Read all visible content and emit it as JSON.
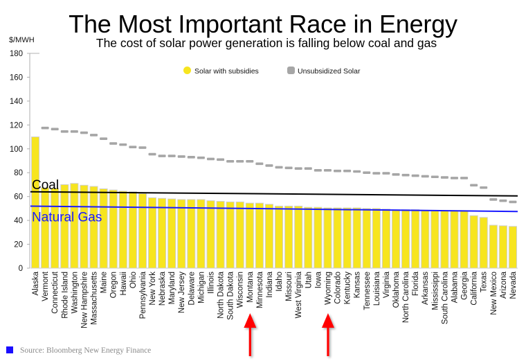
{
  "header": {
    "title": "The Most Important Race in Energy",
    "subtitle": "The cost of solar power generation is falling below coal and gas"
  },
  "source": {
    "label": "Source: Bloomberg New Energy Finance",
    "swatch_color": "#1a0dff"
  },
  "annotations": {
    "arrows": [
      {
        "target": "Montana",
        "color": "#ff0000"
      },
      {
        "target": "Wyoming",
        "color": "#ff0000"
      }
    ]
  },
  "chart_data": {
    "type": "bar",
    "title": "The Most Important Race in Energy",
    "subtitle": "The cost of solar power generation is falling below coal and gas",
    "xlabel": "",
    "ylabel": "$/MWH",
    "ylim": [
      0,
      180
    ],
    "yticks": [
      0,
      20,
      40,
      60,
      80,
      100,
      120,
      140,
      160,
      180
    ],
    "grid": false,
    "legend_position": "top-center",
    "categories": [
      "Alaska",
      "Vermont",
      "Connecticut",
      "Rhode Island",
      "Washington",
      "New Hampshire",
      "Massachusetts",
      "Maine",
      "Oregon",
      "Hawaii",
      "Ohio",
      "Pennsylvania",
      "New York",
      "Nebraska",
      "Maryland",
      "New Jersey",
      "Delaware",
      "Michigan",
      "Illinois",
      "North Dakota",
      "South Dakota",
      "Wisconsin",
      "Montana",
      "Minnesota",
      "Indiana",
      "Idaho",
      "Missouri",
      "West Virginia",
      "Utah",
      "Iowa",
      "Wyoming",
      "Colorado",
      "Kentucky",
      "Kansas",
      "Tennessee",
      "Louisiana",
      "Virginia",
      "Oklahoma",
      "North Carolina",
      "Florida",
      "Arkansas",
      "Mississippi",
      "South Carolina",
      "Alabama",
      "Georgia",
      "California",
      "Texas",
      "New Mexico",
      "Arizona",
      "Nevada"
    ],
    "series": [
      {
        "name": "Solar with subsidies",
        "kind": "bar",
        "color": "#f7e51f",
        "values": [
          110,
          67.5,
          67,
          70,
          71,
          69.5,
          68.5,
          66.5,
          65.5,
          64.5,
          64,
          62.5,
          59,
          58.5,
          58,
          57.5,
          57.5,
          57.5,
          56.5,
          56,
          55.5,
          55.5,
          54.5,
          54.5,
          53.5,
          52,
          52,
          52,
          51,
          51,
          50.5,
          50.5,
          50.5,
          50.5,
          50,
          50,
          49.5,
          49,
          49,
          49,
          48.5,
          48.5,
          48,
          48,
          48,
          44,
          42.5,
          36,
          35.5,
          35
        ]
      },
      {
        "name": "Unsubsidized Solar",
        "kind": "marker",
        "color": "#a6a6a6",
        "values": [
          null,
          117.5,
          116.5,
          114.5,
          114.5,
          113.5,
          111.5,
          108.5,
          104.5,
          103.5,
          101.5,
          101,
          95.5,
          94,
          94,
          93.5,
          93,
          92.5,
          91.5,
          91,
          89.5,
          89.5,
          89.5,
          87.5,
          86,
          84.5,
          84,
          83.5,
          83.5,
          82,
          82,
          81.5,
          81.5,
          81,
          80,
          79.5,
          79.5,
          78.5,
          78,
          77.5,
          77,
          76.5,
          76,
          75.5,
          75.5,
          69.5,
          67.5,
          57.5,
          56.5,
          55.5
        ]
      }
    ],
    "reference_lines": [
      {
        "name": "Coal",
        "color": "#000000",
        "start": 64,
        "end": 60.5
      },
      {
        "name": "Natural Gas",
        "color": "#1a1aff",
        "start": 52,
        "end": 47.5
      }
    ]
  }
}
